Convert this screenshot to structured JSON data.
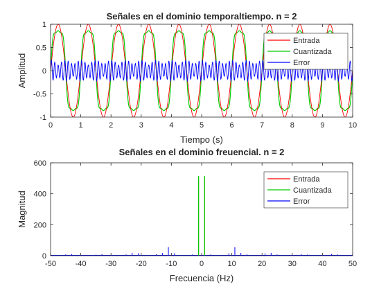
{
  "chart_data": [
    {
      "type": "line",
      "title": "Señales en el dominio temporaltiempo. n = 2",
      "xlabel": "Tiempo (s)",
      "ylabel": "Amplitud",
      "xlim": [
        0,
        10
      ],
      "ylim": [
        -1,
        1
      ],
      "xticks": [
        0,
        1,
        2,
        3,
        4,
        5,
        6,
        7,
        8,
        9,
        10
      ],
      "yticks": [
        -1,
        -0.5,
        0,
        0.5,
        1
      ],
      "xtick_labels": [
        "0",
        "1",
        "2",
        "3",
        "4",
        "5",
        "6",
        "7",
        "8",
        "9",
        "10"
      ],
      "ytick_labels": [
        "-1",
        "-0.5",
        "0",
        "0.5",
        "1"
      ],
      "grid": false,
      "legend_position": "top-right",
      "signal_frequency_hz": 1,
      "series": [
        {
          "name": "Entrada",
          "color": "#ff0000",
          "description": "sin(2*pi*t), amplitude 1"
        },
        {
          "name": "Cuantizada",
          "color": "#00cc00",
          "description": "quantized sine, amplitude 1"
        },
        {
          "name": "Error",
          "color": "#0000ff",
          "description": "quantization error, amplitude ~0.25"
        }
      ]
    },
    {
      "type": "line",
      "title": "Señales en el dominio freuencial. n = 2",
      "xlabel": "Frecuencia (Hz)",
      "ylabel": "Magnitud",
      "xlim": [
        -50,
        50
      ],
      "ylim": [
        0,
        600
      ],
      "xticks": [
        -50,
        -40,
        -30,
        -20,
        -10,
        0,
        10,
        20,
        30,
        40,
        50
      ],
      "yticks": [
        0,
        200,
        400,
        600
      ],
      "xtick_labels": [
        "-50",
        "-40",
        "-30",
        "-20",
        "-10",
        "0",
        "10",
        "20",
        "30",
        "40",
        "50"
      ],
      "ytick_labels": [
        "0",
        "200",
        "400",
        "600"
      ],
      "grid": false,
      "legend_position": "top-right",
      "series": [
        {
          "name": "Entrada",
          "color": "#ff0000",
          "x": [
            -1,
            1
          ],
          "y": [
            500,
            500
          ]
        },
        {
          "name": "Cuantizada",
          "color": "#00cc00",
          "x": [
            -1,
            1
          ],
          "y": [
            515,
            515
          ]
        },
        {
          "name": "Error",
          "color": "#0000ff",
          "x": [
            -45,
            -43,
            -35,
            -33,
            -25,
            -23,
            -21,
            -15,
            -13,
            -11,
            -9,
            -3,
            3,
            9,
            11,
            13,
            15,
            21,
            23,
            25,
            33,
            35,
            43,
            45
          ],
          "y": [
            8,
            10,
            7,
            10,
            8,
            18,
            15,
            9,
            18,
            55,
            15,
            8,
            8,
            15,
            55,
            18,
            9,
            15,
            18,
            8,
            10,
            7,
            10,
            8
          ]
        }
      ]
    }
  ]
}
